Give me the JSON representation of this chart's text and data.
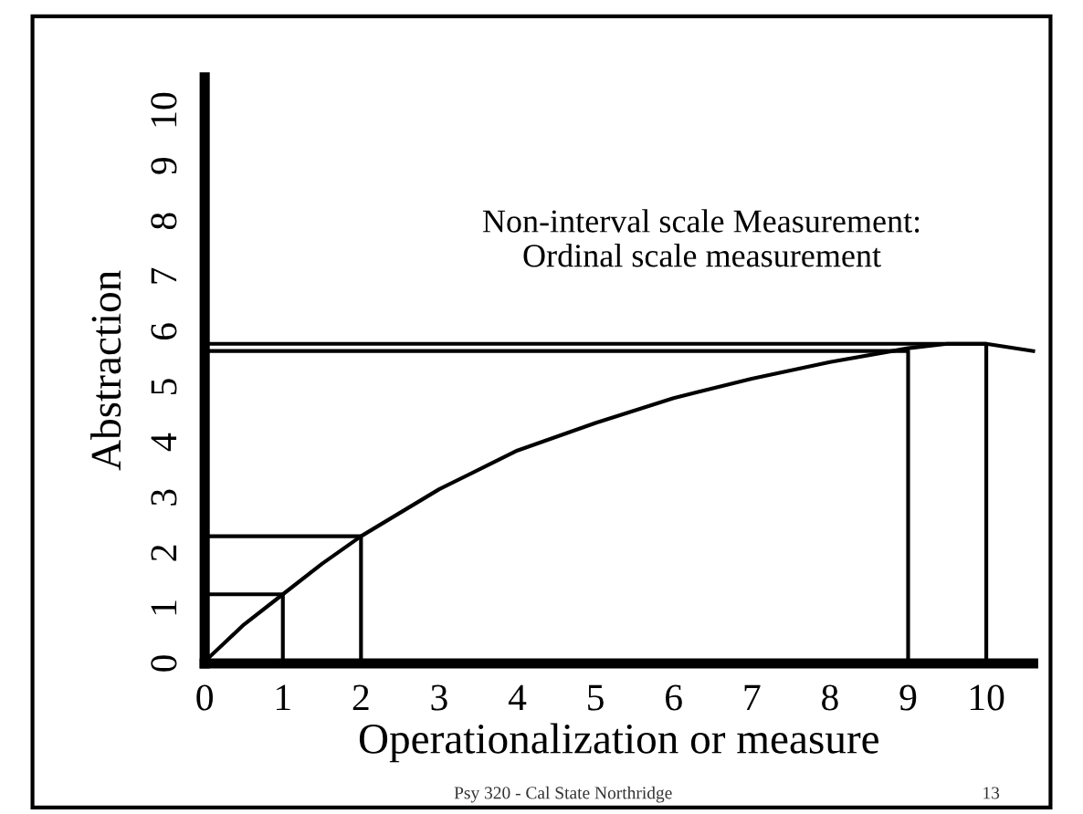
{
  "chart_data": {
    "type": "line",
    "xlabel": "Operationalization or measure",
    "ylabel": "Abstraction",
    "annotations": [
      "Non-interval scale Measurement:\nOrdinal scale measurement",
      "Psy 320 - Cal State Northridge",
      "13"
    ],
    "series": [
      {
        "color": "#000000",
        "x": [
          0.05,
          0.5,
          1,
          1.5,
          2,
          3,
          4,
          5,
          6,
          7,
          8,
          9,
          9.5,
          10,
          10.6
        ],
        "values": [
          0.1,
          0.7,
          1.25,
          1.8,
          2.3,
          3.15,
          3.85,
          4.35,
          4.8,
          5.15,
          5.45,
          5.7,
          5.78,
          5.78,
          5.65
        ]
      },
      {
        "color": "#000000",
        "x": [
          0,
          1,
          1
        ],
        "values": [
          1.25,
          1.25,
          0
        ]
      },
      {
        "color": "#000000",
        "x": [
          0,
          2,
          2
        ],
        "values": [
          2.3,
          2.3,
          0
        ]
      },
      {
        "color": "#000000",
        "x": [
          0,
          9,
          9
        ],
        "values": [
          5.65,
          5.65,
          0
        ]
      },
      {
        "color": "#000000",
        "x": [
          0,
          10,
          10
        ],
        "values": [
          5.78,
          5.78,
          0
        ]
      }
    ],
    "xlim": [
      0,
      10.6
    ],
    "ylim": [
      0,
      10.6
    ],
    "xticks": [
      0,
      1,
      2,
      3,
      4,
      5,
      6,
      7,
      8,
      9,
      10
    ],
    "yticks": [
      0,
      1,
      2,
      3,
      4,
      5,
      6,
      7,
      8,
      9,
      10
    ],
    "grid": false,
    "legend": false,
    "marker": "none",
    "line_style": "solid"
  }
}
